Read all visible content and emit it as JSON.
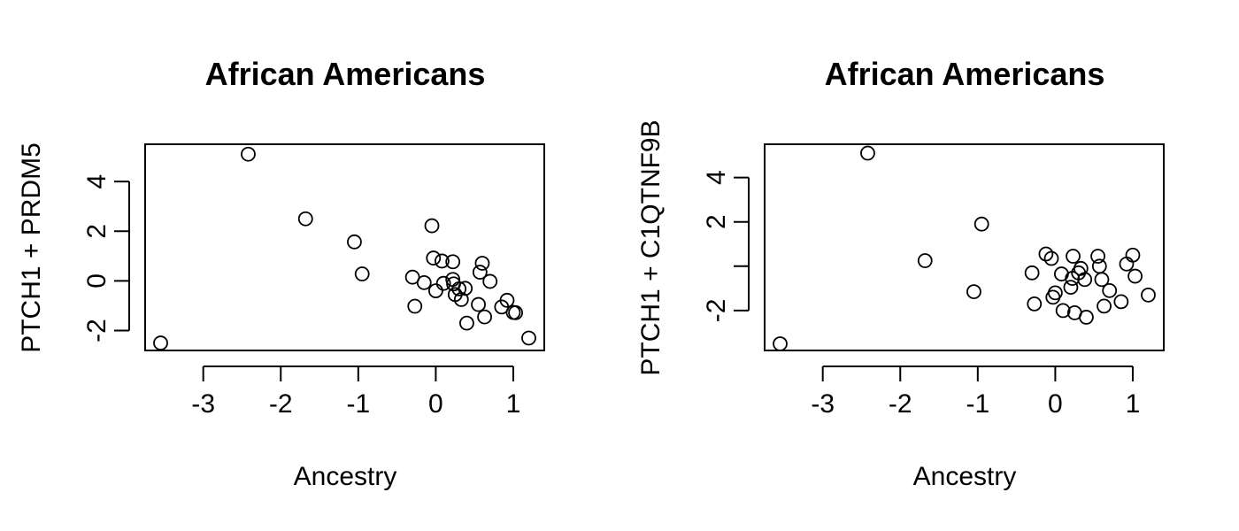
{
  "chart_data": [
    {
      "type": "scatter",
      "title": "African Americans",
      "xlabel": "Ancestry",
      "ylabel": "PTCH1 + PRDM5",
      "xlim": [
        -3.75,
        1.4
      ],
      "ylim": [
        -2.8,
        5.5
      ],
      "xticks": [
        -3,
        -2,
        -1,
        0,
        1
      ],
      "xtick_labels": [
        "-3",
        "-2",
        "-1",
        "0",
        "1"
      ],
      "yticks": [
        -2,
        0,
        2,
        4
      ],
      "ytick_labels": [
        "-2",
        "0",
        "2",
        "4"
      ],
      "x": [
        -3.55,
        -2.42,
        -1.68,
        -1.05,
        -0.95,
        -0.3,
        -0.27,
        -0.15,
        -0.05,
        -0.03,
        0.0,
        0.08,
        0.1,
        0.22,
        0.22,
        0.23,
        0.25,
        0.3,
        0.33,
        0.38,
        0.4,
        0.55,
        0.57,
        0.6,
        0.63,
        0.7,
        0.85,
        0.92,
        1.0,
        1.03,
        1.2
      ],
      "y": [
        -2.5,
        5.1,
        2.5,
        1.57,
        0.28,
        0.15,
        -1.02,
        -0.07,
        2.22,
        0.92,
        -0.4,
        0.8,
        -0.1,
        0.77,
        0.06,
        -0.12,
        -0.55,
        -0.32,
        -0.75,
        -0.3,
        -1.7,
        -0.95,
        0.35,
        0.71,
        -1.45,
        -0.02,
        -1.05,
        -0.78,
        -1.27,
        -1.28,
        -2.3
      ],
      "grid": false,
      "legend": "none"
    },
    {
      "type": "scatter",
      "title": "African Americans",
      "xlabel": "Ancestry",
      "ylabel": "PTCH1 + C1QTNF9B",
      "xlim": [
        -3.75,
        1.4
      ],
      "ylim": [
        -3.8,
        5.5
      ],
      "xticks": [
        -3,
        -2,
        -1,
        0,
        1
      ],
      "xtick_labels": [
        "-3",
        "-2",
        "-1",
        "0",
        "1"
      ],
      "yticks": [
        -2,
        0,
        2,
        4
      ],
      "ytick_labels": [
        "-2",
        "",
        "2",
        "4"
      ],
      "x": [
        -3.55,
        -2.42,
        -1.68,
        -1.05,
        -0.95,
        -0.3,
        -0.27,
        -0.12,
        -0.05,
        -0.03,
        0.0,
        0.08,
        0.1,
        0.2,
        0.22,
        0.23,
        0.25,
        0.3,
        0.33,
        0.38,
        0.4,
        0.55,
        0.57,
        0.6,
        0.63,
        0.7,
        0.85,
        0.92,
        1.0,
        1.03,
        1.2
      ],
      "y": [
        -3.5,
        5.1,
        0.25,
        -1.15,
        1.9,
        -0.3,
        -1.7,
        0.55,
        0.35,
        -1.4,
        -1.2,
        -0.35,
        -2.0,
        -0.95,
        -0.55,
        0.45,
        -2.1,
        -0.3,
        -0.1,
        -0.6,
        -2.3,
        0.45,
        0.0,
        -0.6,
        -1.8,
        -1.1,
        -1.6,
        0.1,
        0.5,
        -0.45,
        -1.3
      ],
      "grid": false,
      "legend": "none"
    }
  ]
}
